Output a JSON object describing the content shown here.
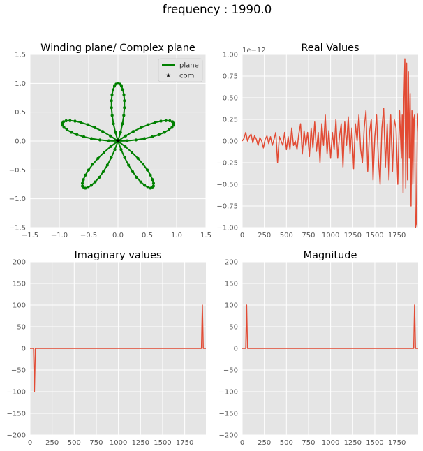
{
  "figure": {
    "suptitle": "frequency : 1990.0"
  },
  "chart_data": [
    {
      "id": "winding",
      "type": "line",
      "title": "Winding plane/ Complex plane",
      "xlim": [
        -1.5,
        1.5
      ],
      "ylim": [
        -1.5,
        1.5
      ],
      "xticks": [
        "−1.5",
        "−1.0",
        "−0.5",
        "0.0",
        "0.5",
        "1.0",
        "1.5"
      ],
      "yticks": [
        "−1.5",
        "−1.0",
        "−0.5",
        "0.0",
        "0.5",
        "1.0",
        "1.5"
      ],
      "grid": true,
      "legend": {
        "position": "top-right",
        "entries": [
          "plane",
          "com"
        ]
      },
      "curve": {
        "kind": "rose",
        "petals": 5,
        "radius": 1.0,
        "orientation_deg": 90,
        "samples": 200
      },
      "com": [
        0.0,
        0.0
      ],
      "colors": {
        "plane": "#008000",
        "com": "#000000"
      }
    },
    {
      "id": "real",
      "type": "line",
      "title": "Real Values",
      "offset_text": "1e−12",
      "xlim": [
        0,
        1990
      ],
      "ylim": [
        -1.0,
        1.0
      ],
      "xticks": [
        "0",
        "250",
        "500",
        "750",
        "1000",
        "1250",
        "1500",
        "1750"
      ],
      "yticks": [
        "−1.00",
        "−0.75",
        "−0.50",
        "−0.25",
        "0.00",
        "0.25",
        "0.50",
        "0.75",
        "1.00"
      ],
      "grid": true,
      "series": [
        {
          "color": "#E24A33",
          "x": [
            0,
            20,
            40,
            60,
            80,
            100,
            120,
            140,
            160,
            180,
            200,
            220,
            240,
            260,
            280,
            300,
            320,
            340,
            360,
            380,
            400,
            420,
            440,
            460,
            480,
            500,
            520,
            540,
            560,
            580,
            600,
            620,
            640,
            660,
            680,
            700,
            720,
            740,
            760,
            780,
            800,
            820,
            840,
            860,
            880,
            900,
            920,
            940,
            960,
            980,
            1000,
            1020,
            1040,
            1060,
            1080,
            1100,
            1120,
            1140,
            1160,
            1180,
            1200,
            1220,
            1240,
            1260,
            1280,
            1300,
            1320,
            1340,
            1360,
            1380,
            1400,
            1420,
            1440,
            1460,
            1480,
            1500,
            1520,
            1540,
            1560,
            1580,
            1600,
            1620,
            1640,
            1660,
            1680,
            1700,
            1720,
            1740,
            1760,
            1780,
            1800,
            1810,
            1820,
            1830,
            1840,
            1850,
            1860,
            1870,
            1880,
            1890,
            1900,
            1910,
            1920,
            1930,
            1940,
            1950,
            1960,
            1970,
            1980,
            1990
          ],
          "y": [
            0.0,
            0.03,
            0.1,
            0.0,
            0.05,
            0.08,
            -0.02,
            0.06,
            0.02,
            -0.05,
            0.04,
            0.0,
            -0.08,
            0.02,
            0.06,
            -0.03,
            0.05,
            -0.05,
            0.02,
            0.1,
            -0.25,
            0.05,
            0.0,
            -0.05,
            0.1,
            -0.1,
            0.05,
            -0.1,
            0.15,
            -0.05,
            0.0,
            -0.1,
            0.08,
            0.2,
            -0.15,
            0.12,
            -0.05,
            0.1,
            -0.18,
            0.15,
            -0.08,
            0.22,
            -0.12,
            0.1,
            -0.25,
            0.2,
            -0.05,
            0.3,
            -0.15,
            0.12,
            -0.2,
            0.1,
            -0.1,
            0.25,
            -0.2,
            0.05,
            0.2,
            -0.3,
            0.22,
            -0.05,
            0.28,
            -0.15,
            0.15,
            -0.32,
            0.2,
            0.0,
            0.3,
            -0.1,
            -0.25,
            0.15,
            0.35,
            -0.35,
            0.1,
            0.25,
            -0.45,
            0.05,
            0.3,
            -0.2,
            -0.5,
            0.15,
            0.38,
            -0.3,
            0.2,
            -0.45,
            0.3,
            -0.35,
            0.25,
            0.15,
            -0.5,
            0.35,
            -0.2,
            0.3,
            -0.6,
            0.5,
            0.95,
            -0.55,
            0.9,
            -0.45,
            0.8,
            -0.2,
            0.55,
            -0.75,
            0.35,
            -0.5,
            0.25,
            0.3,
            -1.0,
            -0.95,
            0.1,
            0.32
          ]
        }
      ]
    },
    {
      "id": "imag",
      "type": "line",
      "title": "Imaginary values",
      "xlim": [
        0,
        1990
      ],
      "ylim": [
        -200,
        200
      ],
      "xticks": [
        "0",
        "250",
        "500",
        "750",
        "1000",
        "1250",
        "1500",
        "1750"
      ],
      "yticks": [
        "−200",
        "−150",
        "−100",
        "−50",
        "0",
        "50",
        "100",
        "150",
        "200"
      ],
      "grid": true,
      "series": [
        {
          "color": "#E24A33",
          "x": [
            0,
            30,
            40,
            50,
            60,
            70,
            1920,
            1930,
            1940,
            1950,
            1960,
            1990
          ],
          "y": [
            0,
            0,
            0,
            -100,
            0,
            0,
            0,
            0,
            0,
            100,
            0,
            0
          ]
        }
      ]
    },
    {
      "id": "mag",
      "type": "line",
      "title": "Magnitude",
      "xlim": [
        0,
        1990
      ],
      "ylim": [
        -200,
        200
      ],
      "xticks": [
        "0",
        "250",
        "500",
        "750",
        "1000",
        "1250",
        "1500",
        "1750"
      ],
      "yticks": [
        "−200",
        "−150",
        "−100",
        "−50",
        "0",
        "50",
        "100",
        "150",
        "200"
      ],
      "grid": true,
      "series": [
        {
          "color": "#E24A33",
          "x": [
            0,
            30,
            40,
            50,
            60,
            70,
            1920,
            1930,
            1940,
            1950,
            1960,
            1990
          ],
          "y": [
            0,
            0,
            0,
            100,
            0,
            0,
            0,
            0,
            0,
            100,
            0,
            0
          ]
        }
      ]
    }
  ]
}
